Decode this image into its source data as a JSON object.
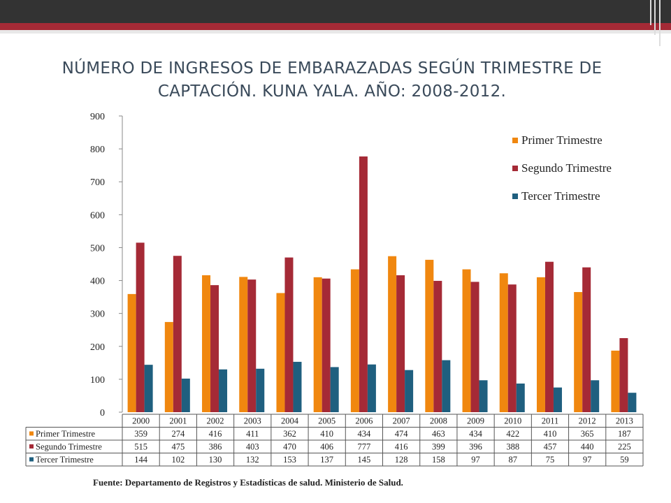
{
  "title": "NÚMERO DE INGRESOS DE EMBARAZADAS SEGÚN TRIMESTRE DE CAPTACIÓN. KUNA YALA. AÑO: 2008-2012.",
  "source": "Fuente: Departamento de Registros y Estadísticas de salud. Ministerio de Salud.",
  "chart_data": {
    "type": "bar",
    "title": "NÚMERO DE INGRESOS DE EMBARAZADAS SEGÚN TRIMESTRE DE CAPTACIÓN. KUNA YALA. AÑO: 2008-2012.",
    "xlabel": "",
    "ylabel": "",
    "ylim": [
      0,
      900
    ],
    "yticks": [
      "0",
      "100",
      "200",
      "300",
      "400",
      "500",
      "600",
      "700",
      "800",
      "900"
    ],
    "grid": false,
    "legend_position": "top-right",
    "data_table": true,
    "categories": [
      "2000",
      "2001",
      "2002",
      "2003",
      "2004",
      "2005",
      "2006",
      "2007",
      "2008",
      "2009",
      "2010",
      "2011",
      "2012",
      "2013"
    ],
    "series": [
      {
        "name": "Primer Trimestre",
        "color": "#f0870f",
        "values": [
          359,
          274,
          416,
          411,
          362,
          410,
          434,
          474,
          463,
          434,
          422,
          410,
          365,
          187
        ]
      },
      {
        "name": "Segundo Trimestre",
        "color": "#a52a36",
        "values": [
          515,
          475,
          386,
          403,
          470,
          406,
          777,
          416,
          399,
          396,
          388,
          457,
          440,
          225
        ]
      },
      {
        "name": "Tercer Trimestre",
        "color": "#1f5f7f",
        "values": [
          144,
          102,
          130,
          132,
          153,
          137,
          145,
          128,
          158,
          97,
          87,
          75,
          97,
          59
        ]
      }
    ]
  }
}
